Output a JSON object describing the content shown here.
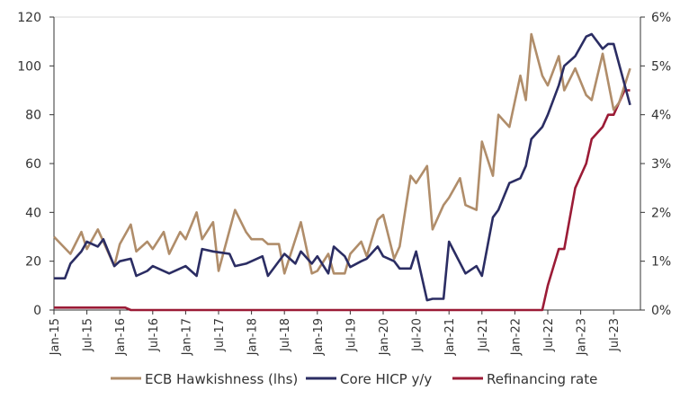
{
  "chart_data": {
    "type": "line",
    "title": "",
    "xlabel": "",
    "ylabel_left": "",
    "ylabel_right": "",
    "ylim_left": [
      0,
      120
    ],
    "ylim_right": [
      0,
      6
    ],
    "left_ticks": [
      "0",
      "20",
      "40",
      "60",
      "80",
      "100",
      "120"
    ],
    "right_ticks": [
      "0%",
      "1%",
      "2%",
      "3%",
      "4%",
      "5%",
      "6%"
    ],
    "x_start": "2015-01",
    "x_ticks": [
      "Jan-15",
      "Jul-15",
      "Jan-16",
      "Jul-16",
      "Jan-17",
      "Jul-17",
      "Jan-18",
      "Jul-18",
      "Jan-19",
      "Jul-19",
      "Jan-20",
      "Jul-20",
      "Jan-21",
      "Jul-21",
      "Jan-22",
      "Jul-22",
      "Jan-23",
      "Jul-23"
    ],
    "legend_position": "bottom",
    "series": [
      {
        "name": "ECB Hawkishness (lhs)",
        "axis": "left",
        "color": "#b08d6a",
        "points": [
          [
            0,
            30
          ],
          [
            3,
            23
          ],
          [
            5,
            32
          ],
          [
            6,
            25
          ],
          [
            8,
            33
          ],
          [
            11,
            18
          ],
          [
            12,
            27
          ],
          [
            14,
            35
          ],
          [
            15,
            24
          ],
          [
            17,
            28
          ],
          [
            18,
            25
          ],
          [
            20,
            32
          ],
          [
            21,
            23
          ],
          [
            23,
            32
          ],
          [
            24,
            29
          ],
          [
            26,
            40
          ],
          [
            27,
            29
          ],
          [
            29,
            36
          ],
          [
            30,
            16
          ],
          [
            33,
            41
          ],
          [
            35,
            32
          ],
          [
            36,
            29
          ],
          [
            38,
            29
          ],
          [
            39,
            27
          ],
          [
            41,
            27
          ],
          [
            42,
            15
          ],
          [
            45,
            36
          ],
          [
            47,
            15
          ],
          [
            48,
            16
          ],
          [
            50,
            23
          ],
          [
            51,
            15
          ],
          [
            53,
            15
          ],
          [
            54,
            23
          ],
          [
            56,
            28
          ],
          [
            57,
            22
          ],
          [
            59,
            37
          ],
          [
            60,
            39
          ],
          [
            62,
            21
          ],
          [
            63,
            26
          ],
          [
            65,
            55
          ],
          [
            66,
            52
          ],
          [
            68,
            59
          ],
          [
            69,
            33
          ],
          [
            71,
            43
          ],
          [
            72,
            46
          ],
          [
            74,
            54
          ],
          [
            75,
            43
          ],
          [
            77,
            41
          ],
          [
            78,
            69
          ],
          [
            80,
            55
          ],
          [
            81,
            80
          ],
          [
            83,
            75
          ],
          [
            85,
            96
          ],
          [
            86,
            86
          ],
          [
            87,
            113
          ],
          [
            89,
            96
          ],
          [
            90,
            92
          ],
          [
            92,
            104
          ],
          [
            93,
            90
          ],
          [
            95,
            99
          ],
          [
            97,
            88
          ],
          [
            98,
            86
          ],
          [
            100,
            105
          ],
          [
            102,
            82
          ],
          [
            103,
            85
          ],
          [
            105,
            99
          ]
        ]
      },
      {
        "name": "Core HICP y/y",
        "axis": "right",
        "color": "#2b2d63",
        "points": [
          [
            0,
            0.65
          ],
          [
            2,
            0.65
          ],
          [
            3,
            0.95
          ],
          [
            5,
            1.2
          ],
          [
            6,
            1.4
          ],
          [
            8,
            1.3
          ],
          [
            9,
            1.45
          ],
          [
            11,
            0.9
          ],
          [
            12,
            1.0
          ],
          [
            14,
            1.05
          ],
          [
            15,
            0.7
          ],
          [
            17,
            0.8
          ],
          [
            18,
            0.9
          ],
          [
            21,
            0.75
          ],
          [
            24,
            0.9
          ],
          [
            26,
            0.7
          ],
          [
            27,
            1.25
          ],
          [
            29,
            1.2
          ],
          [
            32,
            1.15
          ],
          [
            33,
            0.9
          ],
          [
            35,
            0.95
          ],
          [
            38,
            1.1
          ],
          [
            39,
            0.7
          ],
          [
            42,
            1.15
          ],
          [
            44,
            0.95
          ],
          [
            45,
            1.2
          ],
          [
            47,
            0.95
          ],
          [
            48,
            1.1
          ],
          [
            50,
            0.75
          ],
          [
            51,
            1.3
          ],
          [
            53,
            1.1
          ],
          [
            54,
            0.88
          ],
          [
            56,
            1.0
          ],
          [
            57,
            1.05
          ],
          [
            59,
            1.3
          ],
          [
            60,
            1.1
          ],
          [
            62,
            1.0
          ],
          [
            63,
            0.85
          ],
          [
            65,
            0.85
          ],
          [
            66,
            1.2
          ],
          [
            68,
            0.2
          ],
          [
            69,
            0.23
          ],
          [
            71,
            0.23
          ],
          [
            72,
            1.4
          ],
          [
            75,
            0.75
          ],
          [
            77,
            0.9
          ],
          [
            78,
            0.7
          ],
          [
            80,
            1.9
          ],
          [
            81,
            2.05
          ],
          [
            83,
            2.6
          ],
          [
            85,
            2.7
          ],
          [
            86,
            2.95
          ],
          [
            87,
            3.5
          ],
          [
            89,
            3.75
          ],
          [
            90,
            4.0
          ],
          [
            92,
            4.6
          ],
          [
            93,
            5.0
          ],
          [
            95,
            5.2
          ],
          [
            97,
            5.6
          ],
          [
            98,
            5.65
          ],
          [
            100,
            5.35
          ],
          [
            101,
            5.45
          ],
          [
            102,
            5.45
          ],
          [
            105,
            4.2
          ]
        ]
      },
      {
        "name": "Refinancing rate",
        "axis": "right",
        "color": "#9b1b36",
        "points": [
          [
            0,
            0.05
          ],
          [
            13,
            0.05
          ],
          [
            14,
            0
          ],
          [
            89,
            0
          ],
          [
            90,
            0.5
          ],
          [
            92,
            1.25
          ],
          [
            93,
            1.25
          ],
          [
            95,
            2.5
          ],
          [
            97,
            3.0
          ],
          [
            98,
            3.5
          ],
          [
            100,
            3.75
          ],
          [
            101,
            4.0
          ],
          [
            102,
            4.0
          ],
          [
            104,
            4.5
          ],
          [
            105,
            4.5
          ]
        ]
      }
    ]
  }
}
